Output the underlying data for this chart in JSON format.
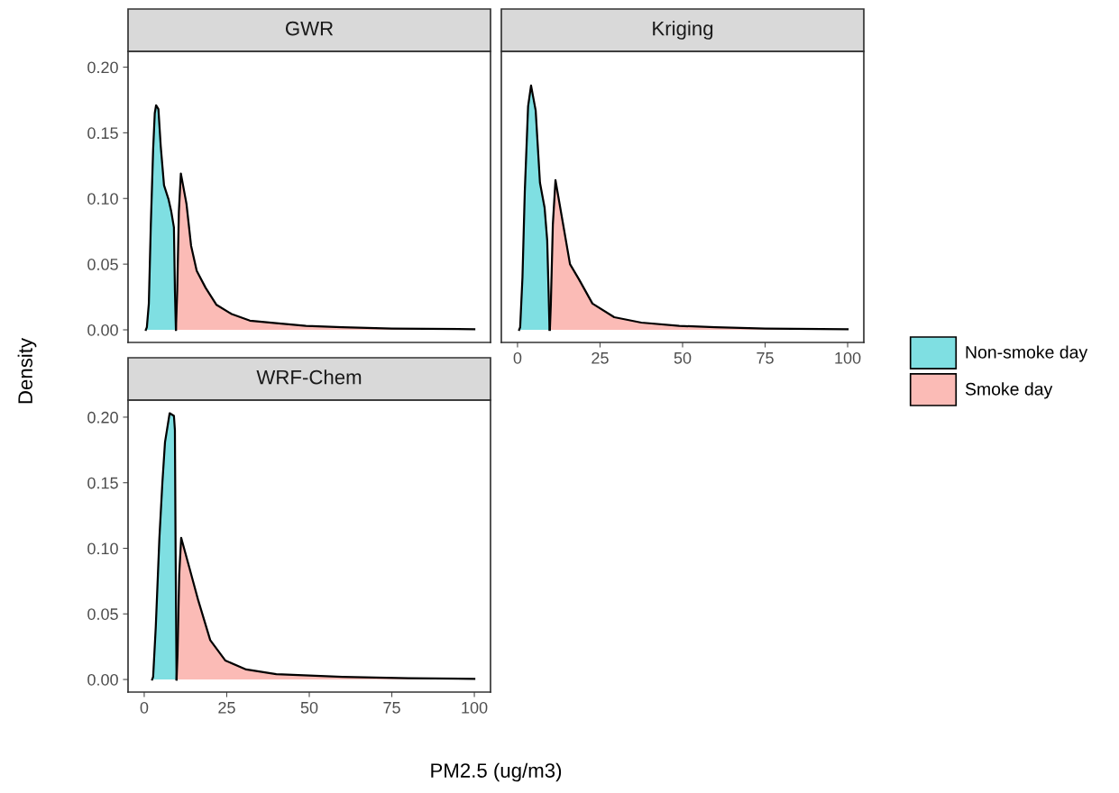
{
  "chart_data": [
    {
      "type": "area",
      "title": "GWR",
      "ylabel": "Density",
      "xlabel": "PM2.5 (ug/m3)",
      "xlim": [
        -4.9,
        104.9
      ],
      "ylim": [
        -0.0096,
        0.212
      ],
      "yticks": [
        {
          "value": 0,
          "label": "0.00"
        },
        {
          "value": 0.05,
          "label": "0.05"
        },
        {
          "value": 0.1,
          "label": "0.10"
        },
        {
          "value": 0.15,
          "label": "0.15"
        },
        {
          "value": 0.2,
          "label": "0.20"
        }
      ],
      "tick_labels": "y",
      "grid": false,
      "legend": "right",
      "series": [
        {
          "name": "Non-smoke day",
          "color": "#7fdfe2",
          "x": [
            0.5,
            0.8,
            1.4,
            2.0,
            2.7,
            3.2,
            3.6,
            4.3,
            5.0,
            6.0,
            7.4,
            8.2,
            9.0,
            9.3,
            9.6
          ],
          "values": [
            0,
            0.002,
            0.02,
            0.08,
            0.137,
            0.165,
            0.171,
            0.168,
            0.14,
            0.11,
            0.099,
            0.09,
            0.078,
            0.03,
            0
          ]
        },
        {
          "name": "Smoke day",
          "color": "#fbbbb6",
          "x": [
            9.6,
            10.0,
            10.5,
            11.1,
            12.8,
            14.2,
            15.9,
            18.6,
            21.9,
            26.5,
            32,
            40,
            49,
            60,
            75,
            100
          ],
          "values": [
            0,
            0.03,
            0.09,
            0.119,
            0.096,
            0.064,
            0.045,
            0.032,
            0.019,
            0.012,
            0.007,
            0.005,
            0.003,
            0.002,
            0.001,
            0.0005
          ]
        }
      ]
    },
    {
      "type": "area",
      "title": "Kriging",
      "xlim": [
        -4.9,
        104.9
      ],
      "ylim": [
        -0.0096,
        0.212
      ],
      "xticks": [
        0,
        25,
        50,
        75,
        100
      ],
      "tick_labels": "x",
      "grid": false,
      "series": [
        {
          "color": "#7fdfe2",
          "x": [
            0.5,
            0.8,
            1.5,
            2.2,
            3.2,
            4.1,
            5.5,
            6.8,
            8.2,
            9.0,
            9.4,
            9.7
          ],
          "values": [
            0,
            0.002,
            0.04,
            0.105,
            0.17,
            0.186,
            0.167,
            0.112,
            0.093,
            0.068,
            0.03,
            0
          ]
        },
        {
          "color": "#fbbbb6",
          "x": [
            9.8,
            10.1,
            10.7,
            11.5,
            13.7,
            15.9,
            18.6,
            22.7,
            29.3,
            37.5,
            49,
            60,
            75,
            100
          ],
          "values": [
            0,
            0.02,
            0.08,
            0.114,
            0.082,
            0.05,
            0.0385,
            0.02,
            0.0096,
            0.0055,
            0.003,
            0.002,
            0.001,
            0.0005
          ]
        }
      ]
    },
    {
      "type": "area",
      "title": "WRF-Chem",
      "xlim": [
        -4.9,
        104.9
      ],
      "ylim": [
        -0.0096,
        0.213
      ],
      "xticks": [
        0,
        25,
        50,
        75,
        100
      ],
      "yticks": [
        {
          "value": 0,
          "label": "0.00"
        },
        {
          "value": 0.05,
          "label": "0.05"
        },
        {
          "value": 0.1,
          "label": "0.10"
        },
        {
          "value": 0.15,
          "label": "0.15"
        },
        {
          "value": 0.2,
          "label": "0.20"
        }
      ],
      "grid": false,
      "series": [
        {
          "color": "#7fdfe2",
          "x": [
            2.4,
            2.7,
            3.5,
            4.6,
            5.5,
            6.3,
            7.7,
            9.0,
            9.3,
            9.5,
            9.8
          ],
          "values": [
            0,
            0.002,
            0.04,
            0.108,
            0.15,
            0.181,
            0.203,
            0.201,
            0.19,
            0.1,
            0
          ]
        },
        {
          "color": "#fbbbb6",
          "x": [
            9.8,
            10.1,
            10.6,
            11.2,
            13.7,
            16.4,
            20,
            24.6,
            30.9,
            40,
            60,
            80,
            100
          ],
          "values": [
            0,
            0.02,
            0.08,
            0.108,
            0.085,
            0.06,
            0.03,
            0.0144,
            0.0076,
            0.004,
            0.002,
            0.001,
            0.0005
          ]
        }
      ]
    }
  ]
}
